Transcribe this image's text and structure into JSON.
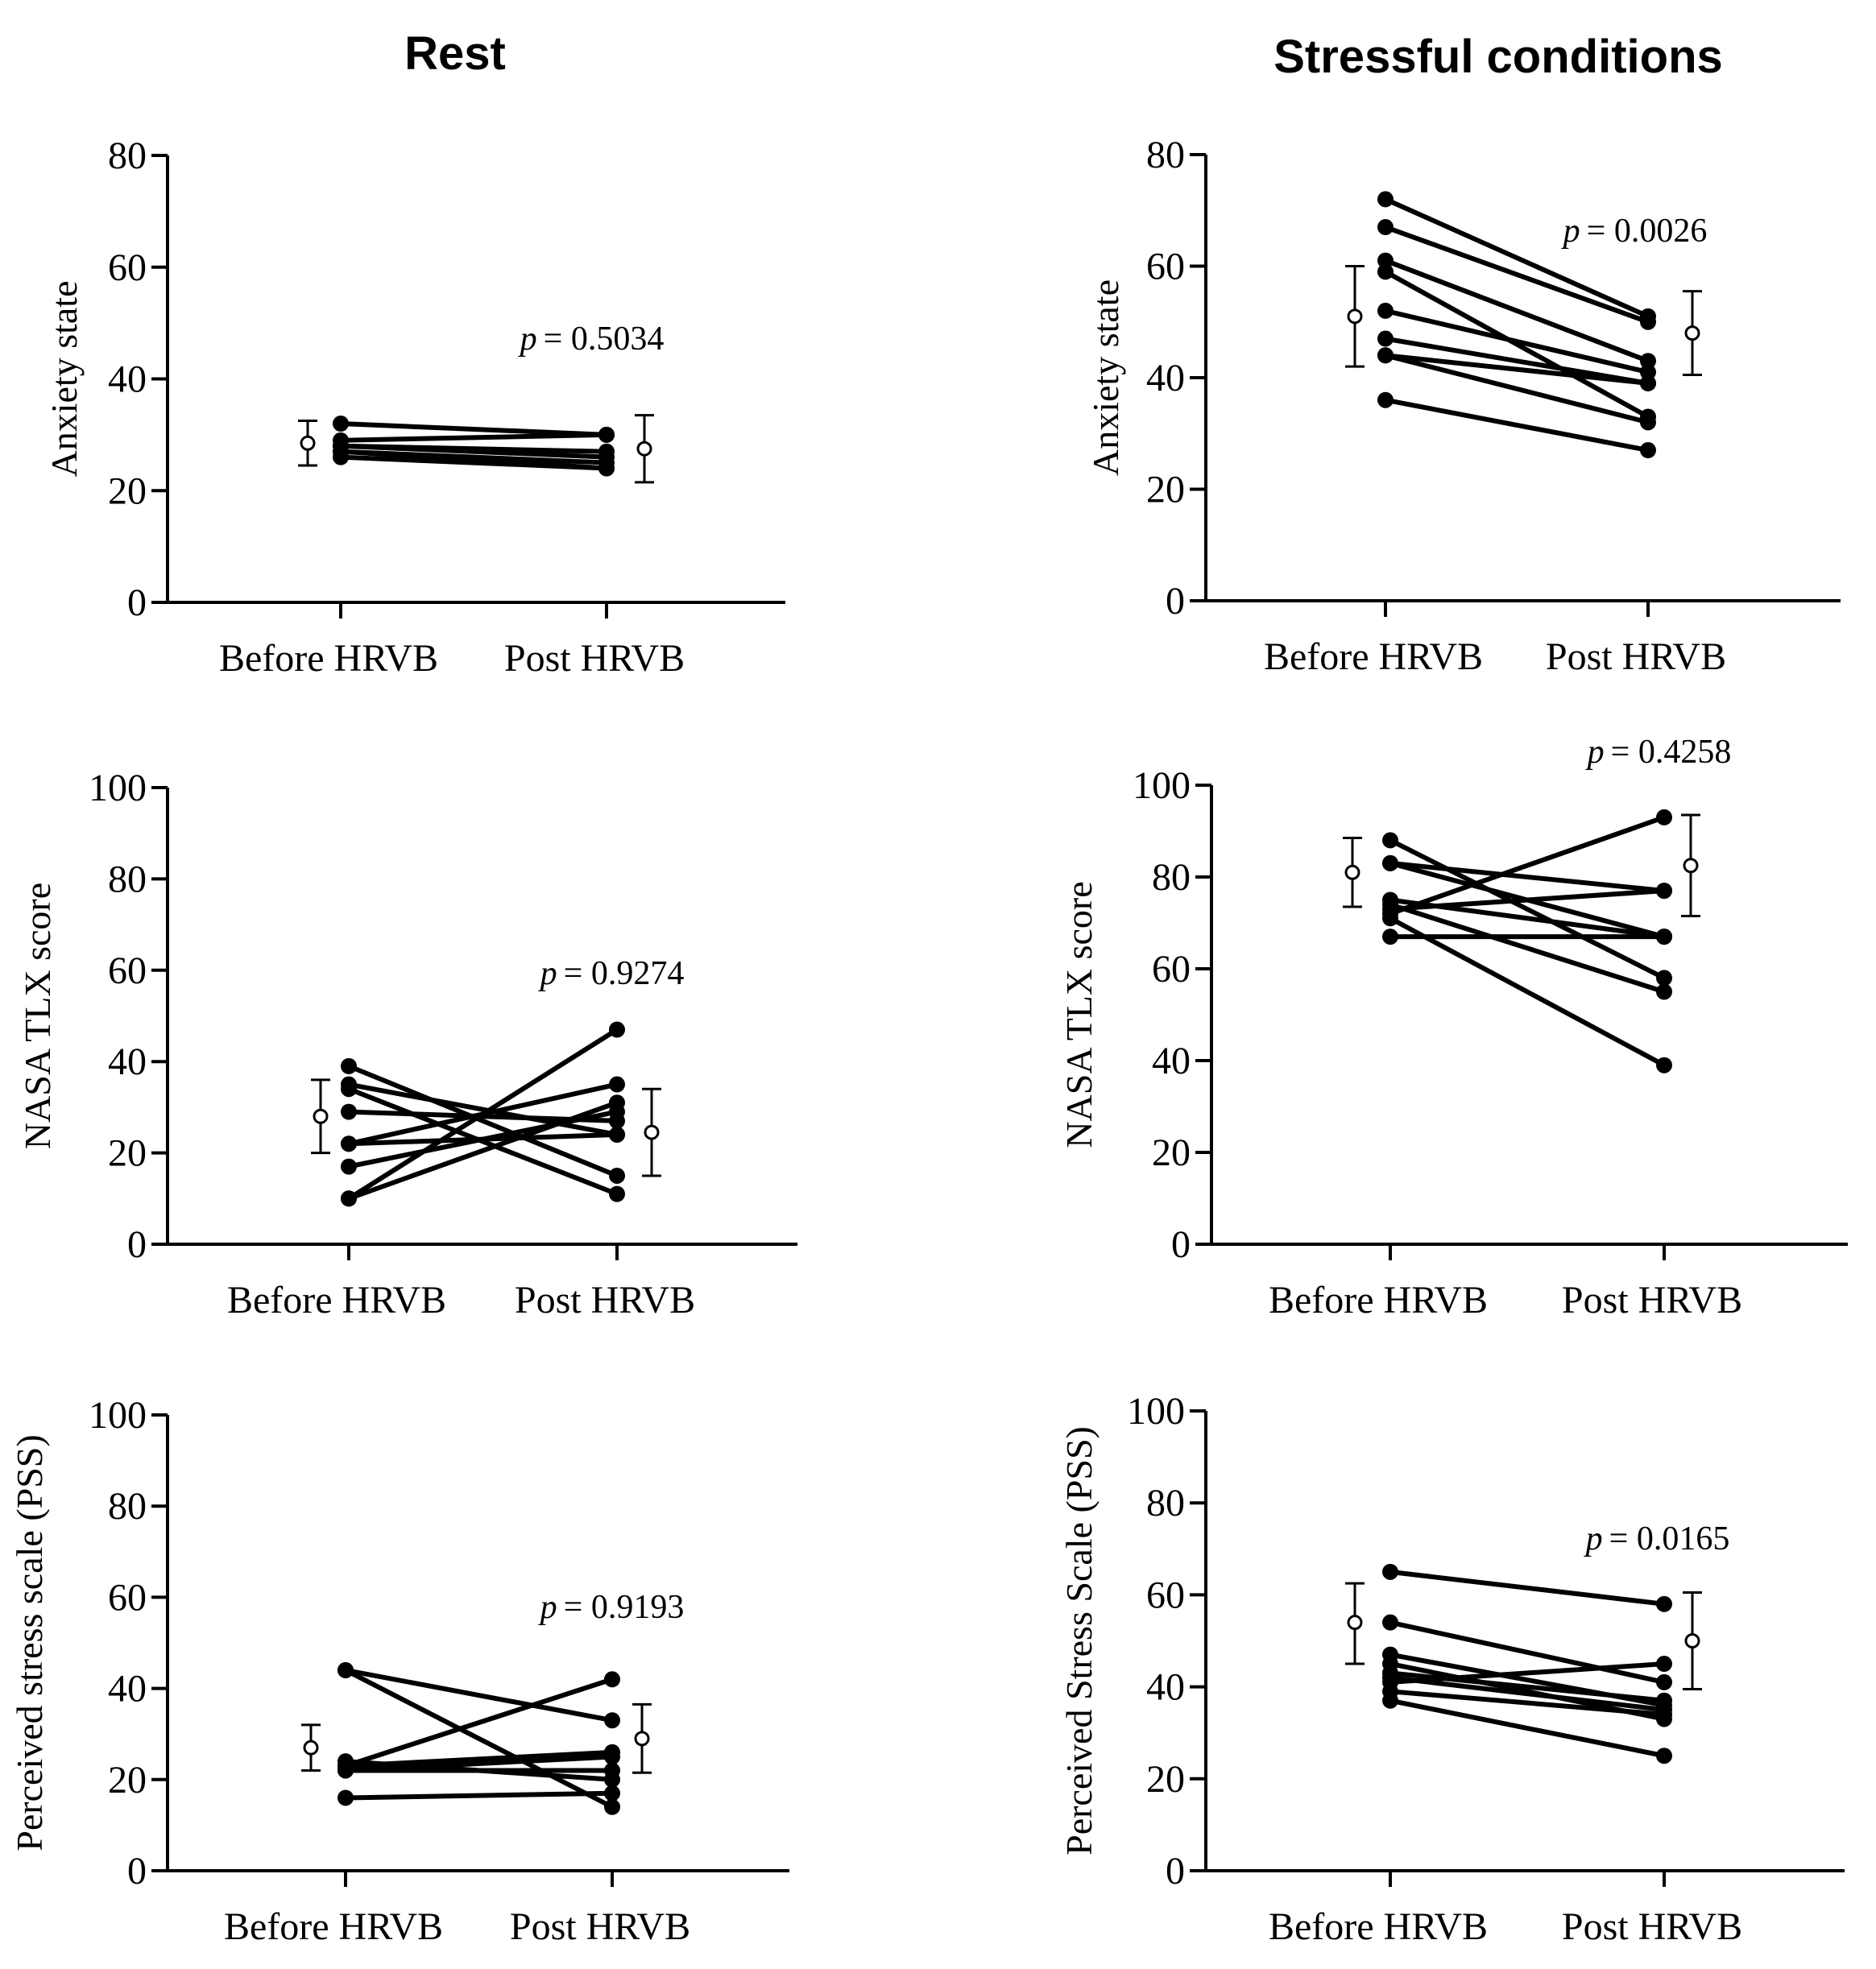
{
  "columns": [
    {
      "title": "Rest"
    },
    {
      "title": "Stressful conditions"
    }
  ],
  "colors": {
    "line": "#000000",
    "background": "#ffffff",
    "mean_marker_fill": "#ffffff"
  },
  "chart_data": [
    {
      "type": "line",
      "panel": "rest-anxiety",
      "title": "",
      "xlabel": "",
      "ylabel": "Anxiety state",
      "categories": [
        "Before HRVB",
        "Post HRVB"
      ],
      "ylim": [
        0,
        80
      ],
      "yticks": [
        "0",
        "20",
        "40",
        "60",
        "80"
      ],
      "p_label": "p",
      "p_value": "= 0.5034",
      "pairs": [
        [
          32,
          30
        ],
        [
          29,
          30
        ],
        [
          28,
          27
        ],
        [
          28,
          26
        ],
        [
          27,
          25
        ],
        [
          27,
          24
        ],
        [
          26,
          24
        ]
      ],
      "mean_before": {
        "mean": 28.5,
        "low": 24.5,
        "high": 32.5
      },
      "mean_post": {
        "mean": 27.5,
        "low": 21.5,
        "high": 33.5
      }
    },
    {
      "type": "line",
      "panel": "stress-anxiety",
      "title": "",
      "xlabel": "",
      "ylabel": "Anxiety state",
      "categories": [
        "Before HRVB",
        "Post HRVB"
      ],
      "ylim": [
        0,
        80
      ],
      "yticks": [
        "0",
        "20",
        "40",
        "60",
        "80"
      ],
      "p_label": "p",
      "p_value": "= 0.0026",
      "pairs": [
        [
          72,
          51
        ],
        [
          67,
          50
        ],
        [
          61,
          43
        ],
        [
          59,
          33
        ],
        [
          52,
          41
        ],
        [
          47,
          39
        ],
        [
          44,
          39
        ],
        [
          44,
          32
        ],
        [
          36,
          27
        ]
      ],
      "mean_before": {
        "mean": 51,
        "low": 42,
        "high": 60
      },
      "mean_post": {
        "mean": 48,
        "low": 40.5,
        "high": 55.5
      }
    },
    {
      "type": "line",
      "panel": "rest-nasa",
      "title": "",
      "xlabel": "",
      "ylabel": "NASA TLX score",
      "categories": [
        "Before HRVB",
        "Post HRVB"
      ],
      "ylim": [
        0,
        100
      ],
      "yticks": [
        "0",
        "20",
        "40",
        "60",
        "80",
        "100"
      ],
      "p_label": "p",
      "p_value": "= 0.9274",
      "pairs": [
        [
          39,
          15
        ],
        [
          35,
          24
        ],
        [
          34,
          11
        ],
        [
          29,
          27
        ],
        [
          22,
          35
        ],
        [
          22,
          24
        ],
        [
          17,
          29
        ],
        [
          10,
          47
        ],
        [
          10,
          31
        ]
      ],
      "mean_before": {
        "mean": 28,
        "low": 20,
        "high": 36
      },
      "mean_post": {
        "mean": 24.5,
        "low": 15,
        "high": 34
      }
    },
    {
      "type": "line",
      "panel": "stress-nasa",
      "title": "",
      "xlabel": "",
      "ylabel": "NASA TLX score",
      "categories": [
        "Before HRVB",
        "Post HRVB"
      ],
      "ylim": [
        0,
        100
      ],
      "yticks": [
        "0",
        "20",
        "40",
        "60",
        "80",
        "100"
      ],
      "p_label": "p",
      "p_value": "= 0.4258",
      "pairs": [
        [
          88,
          58
        ],
        [
          83,
          77
        ],
        [
          83,
          67
        ],
        [
          75,
          67
        ],
        [
          74,
          55
        ],
        [
          73,
          77
        ],
        [
          72,
          93
        ],
        [
          71,
          39
        ],
        [
          67,
          67
        ]
      ],
      "mean_before": {
        "mean": 81,
        "low": 73.5,
        "high": 88.5
      },
      "mean_post": {
        "mean": 82.5,
        "low": 71.5,
        "high": 93.5
      }
    },
    {
      "type": "line",
      "panel": "rest-pss",
      "title": "",
      "xlabel": "",
      "ylabel": "Perceived stress scale (PSS)",
      "categories": [
        "Before HRVB",
        "Post HRVB"
      ],
      "ylim": [
        0,
        100
      ],
      "yticks": [
        "0",
        "20",
        "40",
        "60",
        "80",
        "100"
      ],
      "p_label": "p",
      "p_value": "= 0.9193",
      "pairs": [
        [
          44,
          33
        ],
        [
          44,
          14
        ],
        [
          24,
          20
        ],
        [
          23,
          42
        ],
        [
          23,
          26
        ],
        [
          22,
          25
        ],
        [
          22,
          22
        ],
        [
          16,
          17
        ]
      ],
      "mean_before": {
        "mean": 27,
        "low": 22,
        "high": 32
      },
      "mean_post": {
        "mean": 29,
        "low": 21.5,
        "high": 36.5
      }
    },
    {
      "type": "line",
      "panel": "stress-pss",
      "title": "",
      "xlabel": "",
      "ylabel": "Perceived Stress Scale (PSS)",
      "categories": [
        "Before HRVB",
        "Post HRVB"
      ],
      "ylim": [
        0,
        100
      ],
      "yticks": [
        "0",
        "20",
        "40",
        "60",
        "80",
        "100"
      ],
      "p_label": "p",
      "p_value": "= 0.0165",
      "pairs": [
        [
          65,
          58
        ],
        [
          54,
          41
        ],
        [
          47,
          36
        ],
        [
          45,
          33
        ],
        [
          43,
          37
        ],
        [
          42,
          35
        ],
        [
          41,
          45
        ],
        [
          39,
          34
        ],
        [
          37,
          25
        ]
      ],
      "mean_before": {
        "mean": 54,
        "low": 45,
        "high": 62.5
      },
      "mean_post": {
        "mean": 50,
        "low": 39.5,
        "high": 60.5
      }
    }
  ]
}
